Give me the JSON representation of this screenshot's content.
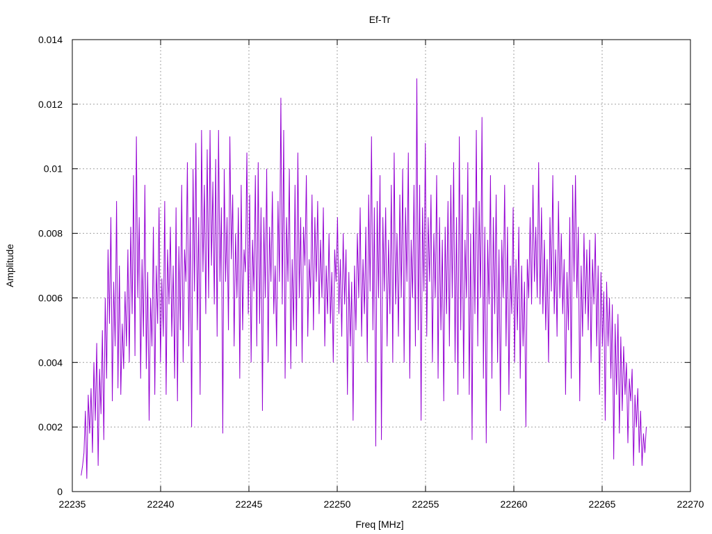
{
  "chart_data": {
    "type": "line",
    "title": "Ef-Tr",
    "xlabel": "Freq [MHz]",
    "ylabel": "Amplitude",
    "xlim": [
      22235,
      22270
    ],
    "ylim": [
      0,
      0.014
    ],
    "xticks": [
      "22235",
      "22240",
      "22245",
      "22250",
      "22255",
      "22260",
      "22265",
      "22270"
    ],
    "yticks": [
      "0",
      "0.002",
      "0.004",
      "0.006",
      "0.008",
      "0.01",
      "0.012",
      "0.014"
    ],
    "grid": true,
    "line_color": "#9400d3",
    "series": [
      {
        "values": [
          0.0005,
          0.0008,
          0.0012,
          0.0025,
          0.0004,
          0.003,
          0.0018,
          0.0032,
          0.0012,
          0.004,
          0.0022,
          0.0046,
          0.0008,
          0.0038,
          0.0024,
          0.005,
          0.0016,
          0.006,
          0.0035,
          0.0075,
          0.0052,
          0.0085,
          0.0028,
          0.0065,
          0.0045,
          0.009,
          0.0032,
          0.007,
          0.003,
          0.0052,
          0.0038,
          0.0062,
          0.0045,
          0.0075,
          0.004,
          0.0082,
          0.0055,
          0.0098,
          0.0042,
          0.011,
          0.006,
          0.0085,
          0.0035,
          0.0072,
          0.0048,
          0.0095,
          0.0038,
          0.0068,
          0.0022,
          0.006,
          0.0045,
          0.0082,
          0.003,
          0.007,
          0.0052,
          0.0088,
          0.004,
          0.0066,
          0.0048,
          0.009,
          0.003,
          0.0075,
          0.0058,
          0.0082,
          0.0048,
          0.007,
          0.0035,
          0.0088,
          0.0028,
          0.0076,
          0.005,
          0.0095,
          0.004,
          0.0075,
          0.0065,
          0.0102,
          0.0045,
          0.0085,
          0.002,
          0.01,
          0.0062,
          0.0108,
          0.005,
          0.0085,
          0.003,
          0.0112,
          0.0068,
          0.0095,
          0.0055,
          0.0106,
          0.006,
          0.0112,
          0.007,
          0.0096,
          0.0058,
          0.0103,
          0.0048,
          0.0112,
          0.0065,
          0.0088,
          0.0018,
          0.01,
          0.0065,
          0.0085,
          0.005,
          0.011,
          0.0072,
          0.0092,
          0.0045,
          0.008,
          0.006,
          0.0088,
          0.0035,
          0.0095,
          0.005,
          0.0075,
          0.0068,
          0.0105,
          0.0055,
          0.0092,
          0.004,
          0.0078,
          0.0062,
          0.0098,
          0.0045,
          0.0102,
          0.0052,
          0.0088,
          0.0025,
          0.0085,
          0.006,
          0.01,
          0.004,
          0.0082,
          0.0065,
          0.0093,
          0.0055,
          0.007,
          0.0045,
          0.009,
          0.0065,
          0.0122,
          0.0058,
          0.0112,
          0.0035,
          0.0085,
          0.0065,
          0.01,
          0.0038,
          0.0072,
          0.005,
          0.0095,
          0.0045,
          0.0105,
          0.006,
          0.0085,
          0.004,
          0.0082,
          0.007,
          0.0098,
          0.0048,
          0.0072,
          0.006,
          0.0092,
          0.005,
          0.0085,
          0.0065,
          0.009,
          0.0055,
          0.0078,
          0.006,
          0.0088,
          0.0045,
          0.007,
          0.0055,
          0.008,
          0.0052,
          0.0068,
          0.004,
          0.0075,
          0.0065,
          0.0085,
          0.0055,
          0.0072,
          0.0048,
          0.008,
          0.0058,
          0.0075,
          0.003,
          0.0068,
          0.0045,
          0.0065,
          0.0022,
          0.007,
          0.005,
          0.008,
          0.006,
          0.0088,
          0.0048,
          0.0072,
          0.0055,
          0.0082,
          0.004,
          0.0092,
          0.0062,
          0.011,
          0.005,
          0.0088,
          0.0014,
          0.009,
          0.006,
          0.0098,
          0.0016,
          0.0085,
          0.0062,
          0.0088,
          0.0045,
          0.0078,
          0.0055,
          0.0095,
          0.004,
          0.0105,
          0.0058,
          0.008,
          0.0048,
          0.0092,
          0.006,
          0.01,
          0.004,
          0.0088,
          0.0065,
          0.0105,
          0.0035,
          0.0078,
          0.006,
          0.0095,
          0.0045,
          0.0128,
          0.005,
          0.0095,
          0.0022,
          0.0088,
          0.0062,
          0.0108,
          0.0048,
          0.0085,
          0.0065,
          0.0092,
          0.004,
          0.008,
          0.006,
          0.0098,
          0.0035,
          0.0085,
          0.005,
          0.0078,
          0.0028,
          0.0082,
          0.0055,
          0.009,
          0.0045,
          0.0095,
          0.006,
          0.0102,
          0.004,
          0.0085,
          0.003,
          0.011,
          0.005,
          0.0092,
          0.0035,
          0.0078,
          0.006,
          0.0102,
          0.003,
          0.008,
          0.0016,
          0.0088,
          0.0055,
          0.0112,
          0.0045,
          0.009,
          0.006,
          0.0116,
          0.0035,
          0.0082,
          0.0015,
          0.0078,
          0.0058,
          0.0098,
          0.0035,
          0.0085,
          0.0055,
          0.0092,
          0.004,
          0.0075,
          0.0025,
          0.0078,
          0.006,
          0.0095,
          0.0045,
          0.0082,
          0.003,
          0.007,
          0.0055,
          0.0088,
          0.004,
          0.0072,
          0.005,
          0.0082,
          0.0035,
          0.007,
          0.0045,
          0.0065,
          0.002,
          0.0072,
          0.006,
          0.0085,
          0.0058,
          0.0095,
          0.0065,
          0.0082,
          0.006,
          0.0102,
          0.0058,
          0.0088,
          0.0055,
          0.0078,
          0.005,
          0.0072,
          0.004,
          0.0085,
          0.0062,
          0.0098,
          0.0055,
          0.0075,
          0.0048,
          0.009,
          0.006,
          0.008,
          0.0055,
          0.0072,
          0.003,
          0.0068,
          0.005,
          0.0085,
          0.0035,
          0.0095,
          0.0065,
          0.0098,
          0.006,
          0.0082,
          0.0028,
          0.007,
          0.0048,
          0.008,
          0.0055,
          0.0075,
          0.005,
          0.0078,
          0.004,
          0.0072,
          0.0058,
          0.008,
          0.0045,
          0.007,
          0.003,
          0.0068,
          0.0045,
          0.0062,
          0.0022,
          0.0065,
          0.0045,
          0.006,
          0.0035,
          0.0058,
          0.001,
          0.0052,
          0.003,
          0.0055,
          0.0018,
          0.0048,
          0.0025,
          0.0045,
          0.003,
          0.004,
          0.0015,
          0.0035,
          0.0028,
          0.0038,
          0.0008,
          0.003,
          0.002,
          0.0032,
          0.0012,
          0.0025,
          0.0008,
          0.0018,
          0.0012,
          0.002
        ]
      }
    ]
  }
}
